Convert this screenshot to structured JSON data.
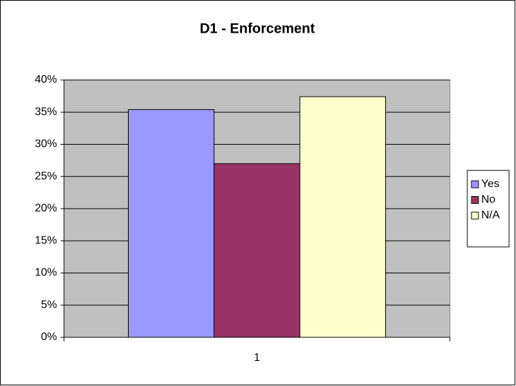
{
  "chart_data": {
    "type": "bar",
    "title": "D1 - Enforcement",
    "categories": [
      "1"
    ],
    "series": [
      {
        "name": "Yes",
        "color": "#9999ff",
        "values": [
          35.4
        ]
      },
      {
        "name": "No",
        "color": "#993366",
        "values": [
          27.0
        ]
      },
      {
        "name": "N/A",
        "color": "#ffffcc",
        "values": [
          37.4
        ]
      }
    ],
    "ylim": [
      0,
      40
    ],
    "yticks": [
      {
        "value": 0,
        "label": "0%"
      },
      {
        "value": 5,
        "label": "5%"
      },
      {
        "value": 10,
        "label": "10%"
      },
      {
        "value": 15,
        "label": "15%"
      },
      {
        "value": 20,
        "label": "20%"
      },
      {
        "value": 25,
        "label": "25%"
      },
      {
        "value": 30,
        "label": "30%"
      },
      {
        "value": 35,
        "label": "35%"
      },
      {
        "value": 40,
        "label": "40%"
      }
    ],
    "grid": true,
    "legend": "right",
    "plot_background": "#c0c0c0"
  }
}
